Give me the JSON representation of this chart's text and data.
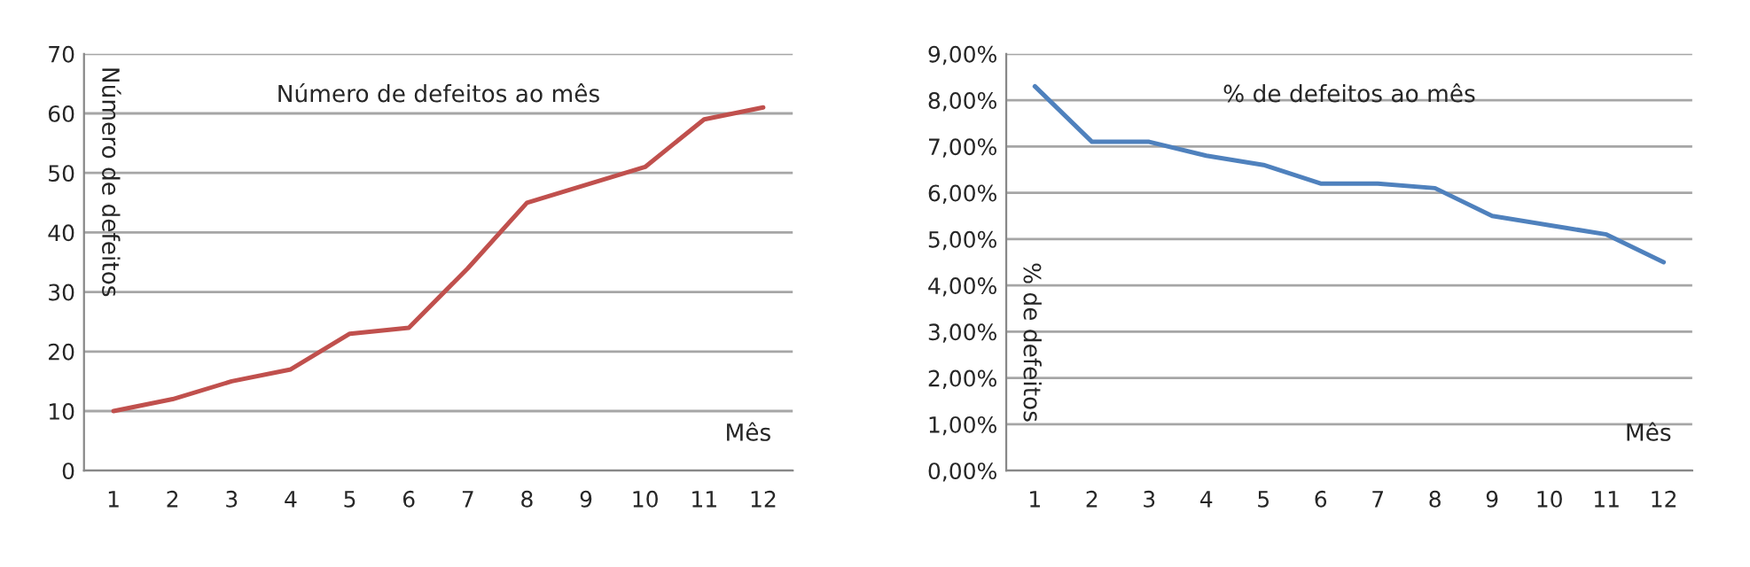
{
  "chart_data": [
    {
      "type": "line",
      "title": "Número de defeitos ao mês",
      "xlabel": "Mês",
      "ylabel": "Número de defeitos",
      "categories": [
        "1",
        "2",
        "3",
        "4",
        "5",
        "6",
        "7",
        "8",
        "9",
        "10",
        "11",
        "12"
      ],
      "series": [
        {
          "color": "#c0504d",
          "values": [
            10,
            12,
            15,
            17,
            23,
            24,
            34,
            45,
            48,
            51,
            59,
            61
          ]
        }
      ],
      "ylim": [
        0,
        70
      ],
      "yticks": [
        0,
        10,
        20,
        30,
        40,
        50,
        60,
        70
      ],
      "grid": "y",
      "legend": false,
      "marker": "none",
      "line_style": "solid"
    },
    {
      "type": "line",
      "title": "% de defeitos ao mês",
      "xlabel": "Mês",
      "ylabel": "% de defeitos",
      "categories": [
        "1",
        "2",
        "3",
        "4",
        "5",
        "6",
        "7",
        "8",
        "9",
        "10",
        "11",
        "12"
      ],
      "series": [
        {
          "color": "#4f81bd",
          "values": [
            8.3,
            7.1,
            7.1,
            6.8,
            6.6,
            6.2,
            6.2,
            6.1,
            5.5,
            5.3,
            5.1,
            4.5
          ]
        }
      ],
      "ylim": [
        0,
        9
      ],
      "yticks": [
        {
          "value": 0,
          "label": "0,00%"
        },
        {
          "value": 1,
          "label": "1,00%"
        },
        {
          "value": 2,
          "label": "2,00%"
        },
        {
          "value": 3,
          "label": "3,00%"
        },
        {
          "value": 4,
          "label": "4,00%"
        },
        {
          "value": 5,
          "label": "5,00%"
        },
        {
          "value": 6,
          "label": "6,00%"
        },
        {
          "value": 7,
          "label": "7,00%"
        },
        {
          "value": 8,
          "label": "8,00%"
        },
        {
          "value": 9,
          "label": "9,00%"
        }
      ],
      "grid": "y",
      "legend": false,
      "marker": "none",
      "line_style": "solid"
    }
  ]
}
